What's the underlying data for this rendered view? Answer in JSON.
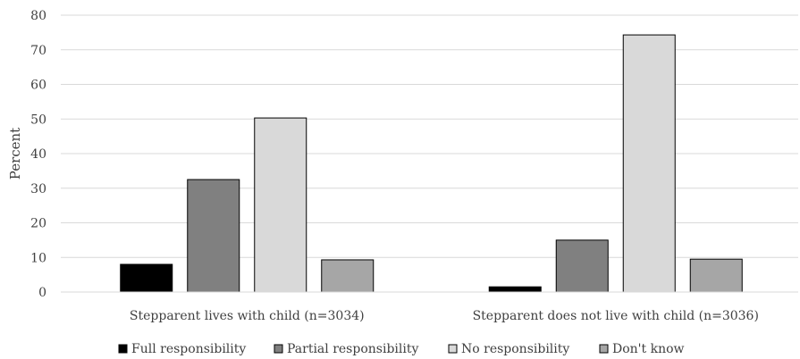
{
  "chart_data": {
    "type": "bar",
    "ylabel": "Percent",
    "xlabel": "",
    "ylim": [
      0,
      80
    ],
    "yticks": [
      0,
      10,
      20,
      30,
      40,
      50,
      60,
      70,
      80
    ],
    "grid": true,
    "legend_position": "bottom",
    "categories": [
      "Stepparent lives with child (n=3034)",
      "Stepparent does not live with child (n=3036)"
    ],
    "series": [
      {
        "name": "Full responsibility",
        "color": "#000000",
        "values": [
          8,
          1.5
        ]
      },
      {
        "name": "Partial responsibility",
        "color": "#808080",
        "values": [
          32.5,
          15
        ]
      },
      {
        "name": "No responsibility",
        "color": "#d9d9d9",
        "values": [
          50.3,
          74.3
        ]
      },
      {
        "name": "Don't know",
        "color": "#a6a6a6",
        "values": [
          9.3,
          9.5
        ]
      }
    ]
  }
}
